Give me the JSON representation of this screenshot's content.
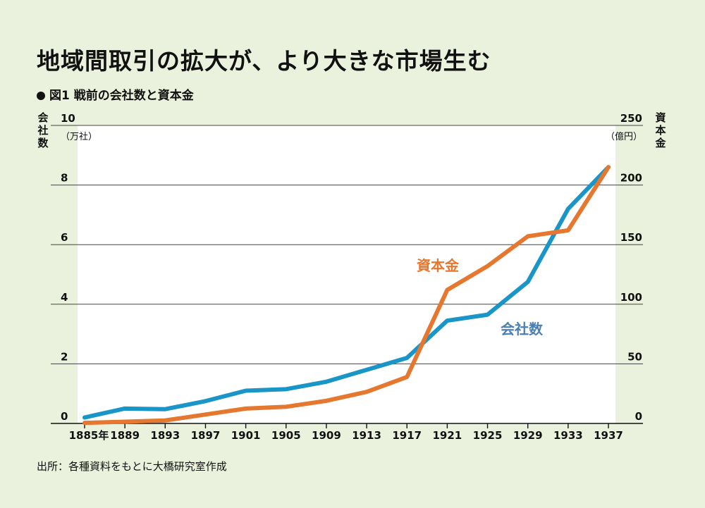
{
  "header": {
    "title": "地域間取引の拡大が、より大きな市場生む",
    "subtitle": "図1 戦前の会社数と資本金"
  },
  "footer": {
    "source": "出所：各種資料をもとに大橋研究室作成"
  },
  "chart_data": {
    "type": "line",
    "title": "戦前の会社数と資本金",
    "x": [
      "1885年",
      "1889",
      "1893",
      "1897",
      "1901",
      "1905",
      "1909",
      "1913",
      "1917",
      "1921",
      "1925",
      "1929",
      "1933",
      "1937"
    ],
    "x_values": [
      1885,
      1889,
      1893,
      1897,
      1901,
      1905,
      1909,
      1913,
      1917,
      1921,
      1925,
      1929,
      1933,
      1937
    ],
    "y_left": {
      "label": "会社数",
      "unit": "（万社）",
      "ticks": [
        "0",
        "2",
        "4",
        "6",
        "8",
        "10"
      ],
      "range": [
        0,
        10
      ]
    },
    "y_right": {
      "label": "資本金",
      "unit": "（億円）",
      "ticks": [
        "0",
        "50",
        "100",
        "150",
        "200",
        "250"
      ],
      "range": [
        0,
        250
      ]
    },
    "series": [
      {
        "name": "会社数",
        "axis": "left",
        "color": "#1a95c8",
        "label_color": "#4a7fb5",
        "values": [
          0.2,
          0.5,
          0.48,
          0.75,
          1.1,
          1.15,
          1.4,
          1.8,
          2.2,
          3.45,
          3.65,
          4.75,
          7.2,
          8.6
        ]
      },
      {
        "name": "資本金",
        "axis": "right",
        "color": "#e6772e",
        "label_color": "#e6772e",
        "values": [
          0.5,
          1.5,
          2.5,
          7.5,
          12.5,
          14,
          19,
          26.5,
          39,
          112,
          132,
          157,
          162,
          215
        ]
      }
    ],
    "grid": true
  }
}
